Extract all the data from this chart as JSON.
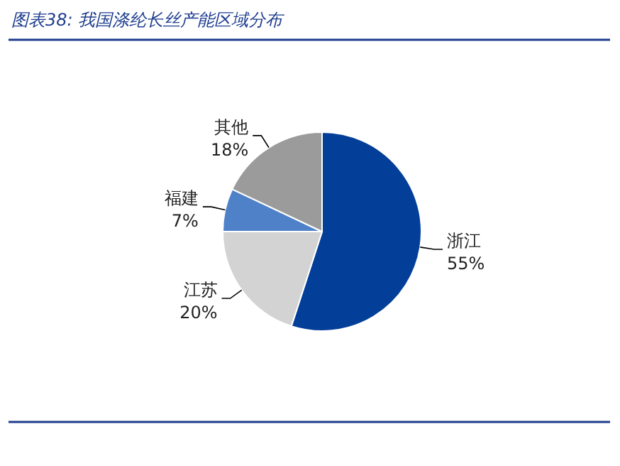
{
  "chart_data": {
    "type": "pie",
    "title": "图表38:  我国涤纶长丝产能区域分布",
    "categories": [
      "浙江",
      "江苏",
      "福建",
      "其他"
    ],
    "values": [
      55,
      20,
      7,
      18
    ],
    "colors": [
      "#033f98",
      "#d3d3d3",
      "#4f81c9",
      "#9b9b9b"
    ],
    "value_labels": [
      "55%",
      "20%",
      "7%",
      "18%"
    ]
  }
}
